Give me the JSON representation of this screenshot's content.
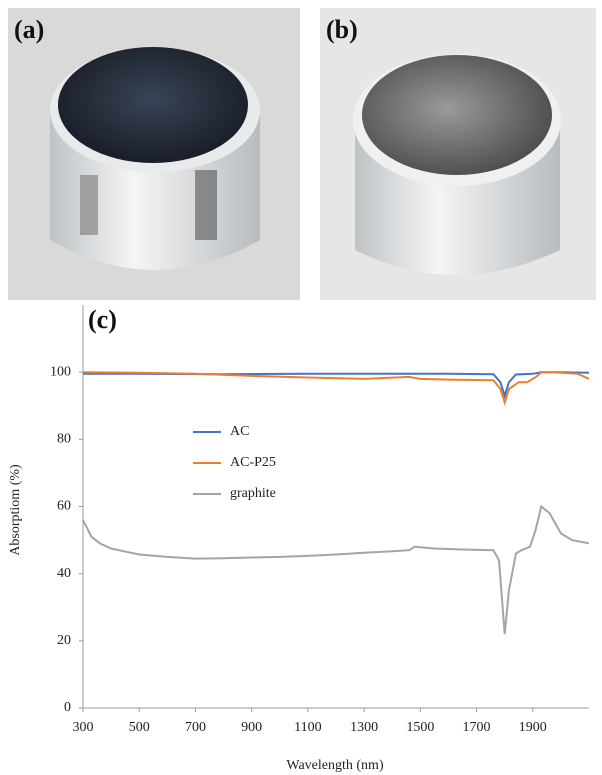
{
  "panel_labels": [
    "(a)",
    "(b)"
  ],
  "chart_data": {
    "type": "line",
    "annotation": "(c)",
    "x_label": "Wavelength (nm)",
    "y_label": "Absorptiom (%)",
    "xlim": [
      300,
      2100
    ],
    "ylim": [
      0,
      120
    ],
    "xticks": [
      300,
      500,
      700,
      900,
      1100,
      1300,
      1500,
      1700,
      1900
    ],
    "yticks": [
      0,
      20,
      40,
      60,
      80,
      100
    ],
    "series": [
      {
        "name": "AC",
        "color": "#4472c4",
        "x": [
          300,
          500,
          800,
          1100,
          1400,
          1600,
          1760,
          1785,
          1800,
          1815,
          1840,
          1900,
          1930,
          2000,
          2100
        ],
        "values": [
          99.5,
          99.5,
          99.4,
          99.5,
          99.5,
          99.5,
          99.4,
          97,
          93,
          97,
          99.3,
          99.5,
          100,
          100,
          99.8
        ]
      },
      {
        "name": "AC-P25",
        "color": "#ed7d31",
        "x": [
          300,
          500,
          700,
          900,
          1100,
          1300,
          1460,
          1500,
          1600,
          1760,
          1785,
          1800,
          1815,
          1850,
          1880,
          1910,
          1930,
          1970,
          2060,
          2100
        ],
        "values": [
          100,
          99.8,
          99.5,
          98.9,
          98.4,
          98,
          98.6,
          98,
          97.8,
          97.6,
          95,
          91,
          95,
          97,
          97,
          98.5,
          100,
          100,
          99.5,
          98
        ]
      },
      {
        "name": "graphite",
        "color": "#a5a5a5",
        "x": [
          300,
          330,
          360,
          400,
          500,
          600,
          700,
          800,
          900,
          1000,
          1100,
          1200,
          1300,
          1400,
          1460,
          1480,
          1550,
          1650,
          1760,
          1780,
          1800,
          1815,
          1840,
          1860,
          1890,
          1910,
          1930,
          1960,
          2000,
          2040,
          2100
        ],
        "values": [
          56,
          51,
          49,
          47.5,
          45.7,
          45,
          44.5,
          44.6,
          44.8,
          45,
          45.3,
          45.7,
          46.2,
          46.7,
          47,
          48,
          47.5,
          47.2,
          47,
          44,
          22,
          35,
          46,
          47,
          48,
          53,
          60,
          58,
          52,
          50,
          49
        ]
      }
    ]
  }
}
